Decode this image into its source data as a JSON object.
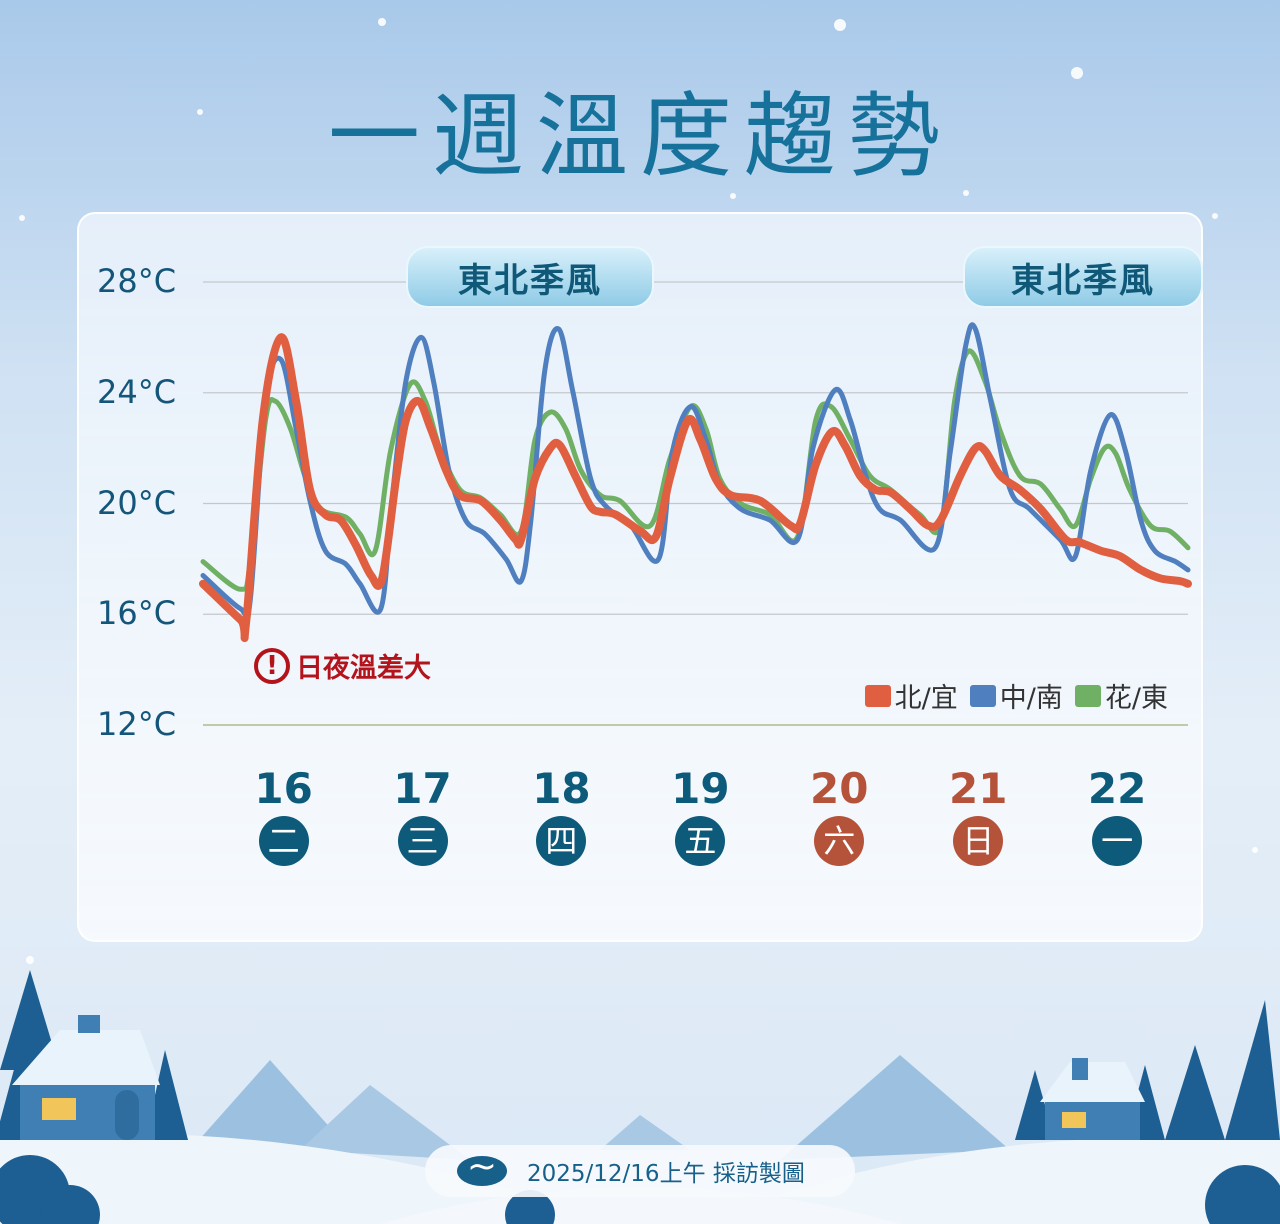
{
  "title": "一週溫度趨勢",
  "badges": [
    "東北季風",
    "東北季風"
  ],
  "warning": {
    "icon": "exclamation-circle-icon",
    "symbol": "!",
    "text": "日夜溫差大"
  },
  "footer": {
    "logo": "central-news-agency-logo",
    "text": "2025/12/16上午 採訪製圖"
  },
  "colors": {
    "north": "#e05f41",
    "central_south": "#4f7fbf",
    "east": "#6fb064",
    "weekday": "#0e5a7a",
    "weekend": "#b5533a",
    "title": "#16729a"
  },
  "chart_data": {
    "type": "line",
    "title": "一週溫度趨勢",
    "ylim": [
      12,
      28
    ],
    "y_ticks": [
      "28°C",
      "24°C",
      "20°C",
      "16°C",
      "12°C"
    ],
    "y_tick_values": [
      28,
      24,
      20,
      16,
      12
    ],
    "xlim": [
      15.42,
      22.51
    ],
    "grid": true,
    "legend": "bottom-right",
    "x_ticks": [
      {
        "day": "16",
        "weekday": "二",
        "weekend": false
      },
      {
        "day": "17",
        "weekday": "三",
        "weekend": false
      },
      {
        "day": "18",
        "weekday": "四",
        "weekend": false
      },
      {
        "day": "19",
        "weekday": "五",
        "weekend": false
      },
      {
        "day": "20",
        "weekday": "六",
        "weekend": true
      },
      {
        "day": "21",
        "weekday": "日",
        "weekend": true
      },
      {
        "day": "22",
        "weekday": "一",
        "weekend": false
      }
    ],
    "series": [
      {
        "name": "北/宜",
        "color": "#e05f41",
        "points": [
          [
            15.42,
            17.1
          ],
          [
            15.69,
            15.8
          ],
          [
            15.73,
            15.7
          ],
          [
            15.85,
            23.0
          ],
          [
            15.98,
            26.0
          ],
          [
            16.09,
            23.7
          ],
          [
            16.19,
            20.5
          ],
          [
            16.3,
            19.6
          ],
          [
            16.41,
            19.4
          ],
          [
            16.52,
            18.5
          ],
          [
            16.63,
            17.4
          ],
          [
            16.71,
            17.3
          ],
          [
            16.81,
            20.9
          ],
          [
            16.88,
            23.0
          ],
          [
            16.97,
            23.7
          ],
          [
            17.06,
            22.7
          ],
          [
            17.17,
            21.2
          ],
          [
            17.27,
            20.3
          ],
          [
            17.42,
            20.1
          ],
          [
            17.56,
            19.4
          ],
          [
            17.67,
            18.7
          ],
          [
            17.71,
            18.7
          ],
          [
            17.81,
            20.9
          ],
          [
            17.92,
            22.0
          ],
          [
            17.99,
            22.1
          ],
          [
            18.1,
            21.0
          ],
          [
            18.21,
            19.9
          ],
          [
            18.28,
            19.7
          ],
          [
            18.39,
            19.6
          ],
          [
            18.57,
            19.0
          ],
          [
            18.68,
            18.8
          ],
          [
            18.78,
            20.9
          ],
          [
            18.91,
            23.0
          ],
          [
            19.0,
            22.3
          ],
          [
            19.11,
            20.9
          ],
          [
            19.22,
            20.3
          ],
          [
            19.43,
            20.1
          ],
          [
            19.65,
            19.2
          ],
          [
            19.72,
            19.3
          ],
          [
            19.83,
            21.4
          ],
          [
            19.95,
            22.6
          ],
          [
            20.04,
            22.1
          ],
          [
            20.15,
            21.0
          ],
          [
            20.26,
            20.5
          ],
          [
            20.37,
            20.4
          ],
          [
            20.51,
            19.8
          ],
          [
            20.64,
            19.2
          ],
          [
            20.73,
            19.4
          ],
          [
            20.87,
            21.0
          ],
          [
            20.98,
            22.0
          ],
          [
            21.05,
            21.9
          ],
          [
            21.16,
            21.0
          ],
          [
            21.3,
            20.5
          ],
          [
            21.45,
            19.8
          ],
          [
            21.63,
            18.7
          ],
          [
            21.73,
            18.6
          ],
          [
            21.88,
            18.3
          ],
          [
            22.02,
            18.1
          ],
          [
            22.17,
            17.6
          ],
          [
            22.31,
            17.3
          ],
          [
            22.45,
            17.2
          ],
          [
            22.51,
            17.1
          ]
        ]
      },
      {
        "name": "中/南",
        "color": "#4f7fbf",
        "points": [
          [
            15.42,
            17.4
          ],
          [
            15.69,
            16.2
          ],
          [
            15.76,
            16.5
          ],
          [
            15.87,
            23.7
          ],
          [
            15.98,
            25.2
          ],
          [
            16.09,
            22.7
          ],
          [
            16.19,
            20.1
          ],
          [
            16.3,
            18.3
          ],
          [
            16.45,
            17.8
          ],
          [
            16.55,
            17.1
          ],
          [
            16.7,
            16.2
          ],
          [
            16.78,
            20.1
          ],
          [
            16.88,
            24.4
          ],
          [
            16.99,
            26.0
          ],
          [
            17.08,
            24.4
          ],
          [
            17.19,
            21.2
          ],
          [
            17.31,
            19.4
          ],
          [
            17.45,
            18.9
          ],
          [
            17.6,
            18.0
          ],
          [
            17.71,
            17.2
          ],
          [
            17.78,
            19.4
          ],
          [
            17.88,
            24.8
          ],
          [
            17.98,
            26.3
          ],
          [
            18.08,
            24.1
          ],
          [
            18.21,
            20.9
          ],
          [
            18.32,
            19.9
          ],
          [
            18.5,
            19.2
          ],
          [
            18.7,
            18.0
          ],
          [
            18.8,
            21.9
          ],
          [
            18.93,
            23.5
          ],
          [
            19.04,
            22.3
          ],
          [
            19.14,
            20.7
          ],
          [
            19.29,
            19.8
          ],
          [
            19.5,
            19.4
          ],
          [
            19.7,
            18.7
          ],
          [
            19.81,
            22.0
          ],
          [
            19.97,
            24.1
          ],
          [
            20.08,
            23.0
          ],
          [
            20.19,
            21.0
          ],
          [
            20.29,
            19.8
          ],
          [
            20.44,
            19.4
          ],
          [
            20.69,
            18.4
          ],
          [
            20.8,
            21.9
          ],
          [
            20.91,
            25.7
          ],
          [
            20.98,
            26.3
          ],
          [
            21.09,
            23.7
          ],
          [
            21.23,
            20.5
          ],
          [
            21.37,
            19.8
          ],
          [
            21.59,
            18.7
          ],
          [
            21.7,
            18.1
          ],
          [
            21.81,
            21.2
          ],
          [
            21.95,
            23.2
          ],
          [
            22.06,
            21.9
          ],
          [
            22.17,
            19.4
          ],
          [
            22.27,
            18.3
          ],
          [
            22.42,
            17.9
          ],
          [
            22.51,
            17.6
          ]
        ]
      },
      {
        "name": "花/東",
        "color": "#6fb064",
        "points": [
          [
            15.42,
            17.9
          ],
          [
            15.69,
            16.9
          ],
          [
            15.76,
            17.9
          ],
          [
            15.87,
            23.0
          ],
          [
            15.94,
            23.7
          ],
          [
            16.05,
            22.7
          ],
          [
            16.16,
            20.9
          ],
          [
            16.27,
            19.8
          ],
          [
            16.45,
            19.5
          ],
          [
            16.55,
            18.9
          ],
          [
            16.66,
            18.3
          ],
          [
            16.77,
            21.9
          ],
          [
            16.91,
            24.3
          ],
          [
            17.02,
            23.7
          ],
          [
            17.13,
            21.9
          ],
          [
            17.27,
            20.5
          ],
          [
            17.42,
            20.2
          ],
          [
            17.56,
            19.6
          ],
          [
            17.71,
            19.0
          ],
          [
            17.81,
            22.3
          ],
          [
            17.92,
            23.3
          ],
          [
            18.03,
            22.7
          ],
          [
            18.14,
            21.2
          ],
          [
            18.28,
            20.3
          ],
          [
            18.42,
            20.1
          ],
          [
            18.64,
            19.2
          ],
          [
            18.78,
            21.6
          ],
          [
            18.93,
            23.5
          ],
          [
            19.04,
            22.7
          ],
          [
            19.14,
            20.9
          ],
          [
            19.29,
            20.0
          ],
          [
            19.5,
            19.6
          ],
          [
            19.7,
            18.8
          ],
          [
            19.83,
            23.0
          ],
          [
            19.94,
            23.5
          ],
          [
            20.08,
            22.3
          ],
          [
            20.22,
            21.0
          ],
          [
            20.37,
            20.5
          ],
          [
            20.58,
            19.6
          ],
          [
            20.73,
            19.2
          ],
          [
            20.83,
            23.7
          ],
          [
            20.93,
            25.5
          ],
          [
            21.05,
            24.4
          ],
          [
            21.16,
            22.6
          ],
          [
            21.3,
            21.0
          ],
          [
            21.45,
            20.7
          ],
          [
            21.59,
            19.8
          ],
          [
            21.7,
            19.2
          ],
          [
            21.81,
            20.9
          ],
          [
            21.91,
            22.0
          ],
          [
            21.99,
            21.8
          ],
          [
            22.09,
            20.5
          ],
          [
            22.24,
            19.2
          ],
          [
            22.38,
            19.0
          ],
          [
            22.51,
            18.4
          ]
        ]
      }
    ]
  }
}
